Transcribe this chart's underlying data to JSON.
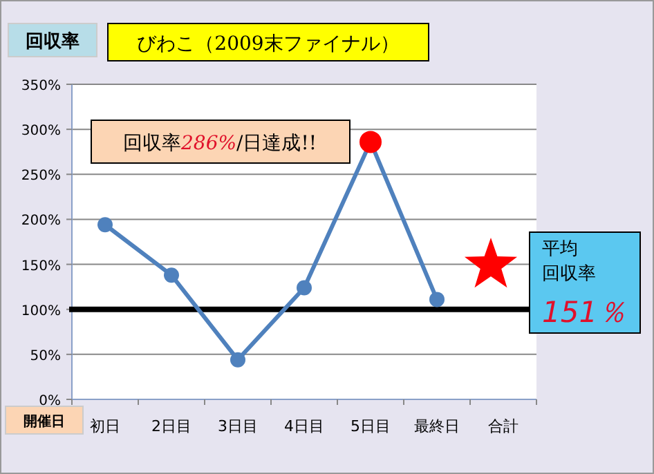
{
  "chart_data": {
    "type": "line",
    "title": "びわこ（2009末ファイナル）",
    "ylabel": "回収率",
    "xlabel": "開催日",
    "categories": [
      "初日",
      "2日目",
      "3日目",
      "4日目",
      "5日目",
      "最終日",
      "合計"
    ],
    "series": [
      {
        "color": "#4f81bd",
        "marker": "circle",
        "values": [
          194,
          138,
          44,
          124,
          286,
          111,
          null
        ]
      },
      {
        "type": "scatter",
        "color": "#ff0000",
        "marker": "circle",
        "x": [
          "5日目"
        ],
        "values": [
          286
        ]
      }
    ],
    "ylim": [
      0,
      350
    ],
    "yticks": [
      {
        "value": 0,
        "label": "0%"
      },
      {
        "value": 50,
        "label": "50%"
      },
      {
        "value": 100,
        "label": "100%"
      },
      {
        "value": 150,
        "label": "150%"
      },
      {
        "value": 200,
        "label": "200%"
      },
      {
        "value": 250,
        "label": "250%"
      },
      {
        "value": 300,
        "label": "300%"
      },
      {
        "value": 350,
        "label": "350%"
      }
    ],
    "grid": "y",
    "ref_lines": [
      {
        "axis": "y",
        "value": 100,
        "color": "#000000"
      }
    ],
    "annotations": [
      "回収率286%/日達成!!",
      "平均回収率151％"
    ]
  }
}
